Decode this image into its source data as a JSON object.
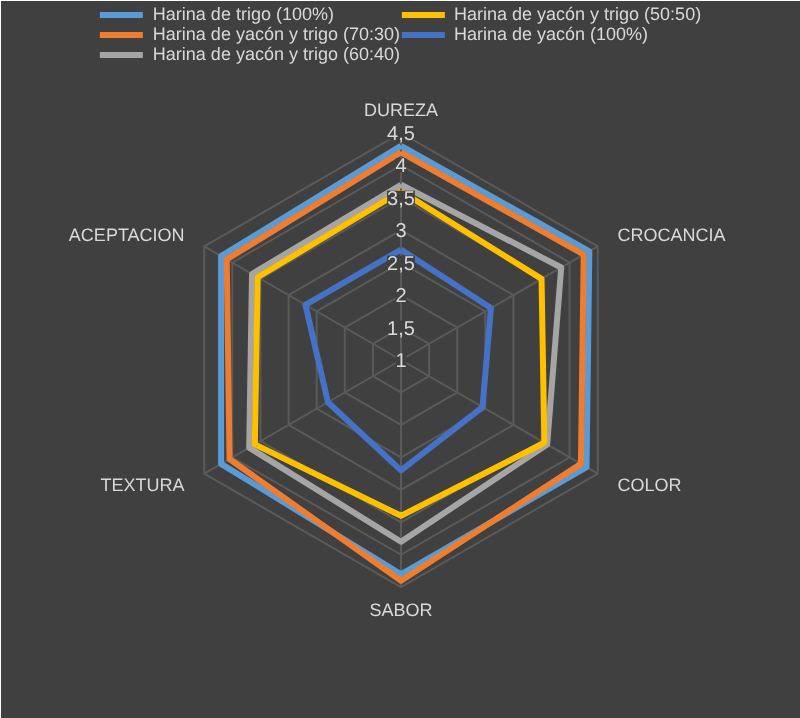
{
  "chart_data": {
    "type": "radar",
    "categories": [
      "DUREZA",
      "CROCANCIA",
      "COLOR",
      "SABOR",
      "TEXTURA",
      "ACEPTACION"
    ],
    "ylim": [
      1,
      4.5
    ],
    "yticks": [
      {
        "value": 1,
        "label": "1"
      },
      {
        "value": 1.5,
        "label": "1,5"
      },
      {
        "value": 2,
        "label": "2"
      },
      {
        "value": 2.5,
        "label": "2,5"
      },
      {
        "value": 3,
        "label": "3"
      },
      {
        "value": 3.5,
        "label": "3,5"
      },
      {
        "value": 4,
        "label": "4"
      },
      {
        "value": 4.5,
        "label": "4,5"
      }
    ],
    "grid": true,
    "legend": "top",
    "marker": "none",
    "line_style": "solid",
    "series": [
      {
        "name": "Harina de trigo (100%)",
        "color": "#5b9bd5",
        "values": [
          4.3,
          4.35,
          4.3,
          4.3,
          4.2,
          4.2
        ]
      },
      {
        "name": "Harina de yacón y trigo (70:30)",
        "color": "#ed7d31",
        "values": [
          4.2,
          4.25,
          4.2,
          4.4,
          4.05,
          4.1
        ]
      },
      {
        "name": "Harina de yacón y trigo (60:40)",
        "color": "#a5a5a5",
        "values": [
          3.7,
          3.85,
          3.6,
          3.8,
          3.7,
          3.65
        ]
      },
      {
        "name": "Harina de yacón y trigo (50:50)",
        "color": "#ffc000",
        "values": [
          3.6,
          3.5,
          3.55,
          3.4,
          3.6,
          3.55
        ]
      },
      {
        "name": "Harina de yacón (100%)",
        "color": "#4472c4",
        "values": [
          2.7,
          2.6,
          2.45,
          2.7,
          2.3,
          2.7
        ]
      }
    ]
  }
}
